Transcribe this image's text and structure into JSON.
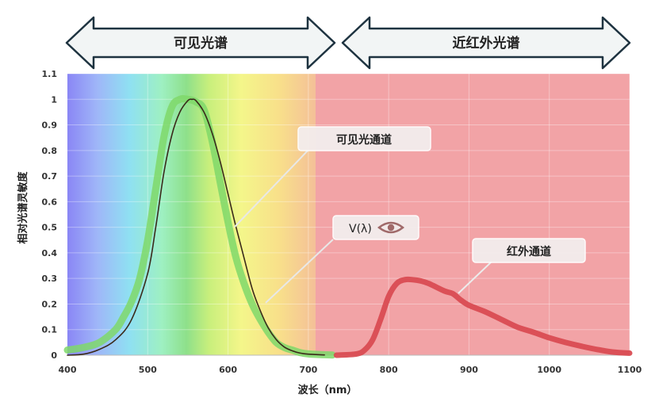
{
  "banners": {
    "visible": "可见光谱",
    "nir": "近红外光谱"
  },
  "callouts": {
    "visible_channel": "可见光通道",
    "v_lambda": "V(λ)",
    "ir_channel": "红外通道"
  },
  "colors": {
    "visible_channel": "#7fd86a",
    "v_lambda": "#3a2a1a",
    "ir_channel": "#d94c52",
    "nir_background": "#f0a0a4"
  },
  "icons": [
    "eye-icon"
  ],
  "chart_data": {
    "type": "line",
    "title": "",
    "xlabel": "波长（nm）",
    "ylabel": "相对光谱灵敏度",
    "xlim": [
      400,
      1100
    ],
    "ylim": [
      0,
      1.1
    ],
    "x_ticks": [
      "400",
      "500",
      "600",
      "700",
      "800",
      "900",
      "1000",
      "1100"
    ],
    "y_ticks": [
      "0",
      "0.1",
      "0.2",
      "0.3",
      "0.4",
      "0.5",
      "0.6",
      "0.7",
      "0.8",
      "0.9",
      "1",
      "1.1"
    ],
    "grid": true,
    "series": [
      {
        "name": "可见光通道",
        "x": [
          400,
          420,
          440,
          460,
          470,
          480,
          490,
          500,
          510,
          520,
          530,
          540,
          550,
          560,
          570,
          580,
          590,
          600,
          610,
          620,
          630,
          640,
          650,
          660,
          670,
          680,
          690,
          700,
          710,
          720,
          730
        ],
        "y": [
          0.02,
          0.03,
          0.05,
          0.1,
          0.15,
          0.21,
          0.3,
          0.45,
          0.65,
          0.85,
          0.97,
          1.0,
          1.0,
          0.99,
          0.96,
          0.84,
          0.68,
          0.52,
          0.38,
          0.28,
          0.2,
          0.14,
          0.09,
          0.05,
          0.03,
          0.02,
          0.01,
          0.005,
          0.003,
          0.002,
          0.001
        ]
      },
      {
        "name": "V(λ)",
        "x": [
          400,
          420,
          440,
          460,
          480,
          500,
          510,
          520,
          530,
          540,
          550,
          555,
          560,
          570,
          580,
          590,
          600,
          610,
          620,
          630,
          640,
          650,
          660,
          670,
          680,
          690,
          700,
          720
        ],
        "y": [
          0.0,
          0.004,
          0.023,
          0.06,
          0.14,
          0.32,
          0.5,
          0.71,
          0.86,
          0.95,
          0.995,
          1.0,
          0.995,
          0.95,
          0.87,
          0.76,
          0.63,
          0.5,
          0.38,
          0.26,
          0.175,
          0.107,
          0.061,
          0.032,
          0.017,
          0.008,
          0.004,
          0.001
        ]
      },
      {
        "name": "红外通道",
        "x": [
          735,
          760,
          770,
          780,
          790,
          800,
          810,
          820,
          830,
          840,
          850,
          860,
          870,
          880,
          890,
          900,
          920,
          940,
          960,
          980,
          1000,
          1020,
          1040,
          1060,
          1080,
          1100
        ],
        "y": [
          0.0,
          0.005,
          0.02,
          0.06,
          0.14,
          0.23,
          0.28,
          0.295,
          0.295,
          0.29,
          0.28,
          0.265,
          0.25,
          0.24,
          0.215,
          0.195,
          0.17,
          0.14,
          0.11,
          0.09,
          0.068,
          0.05,
          0.035,
          0.022,
          0.012,
          0.008
        ]
      }
    ]
  }
}
